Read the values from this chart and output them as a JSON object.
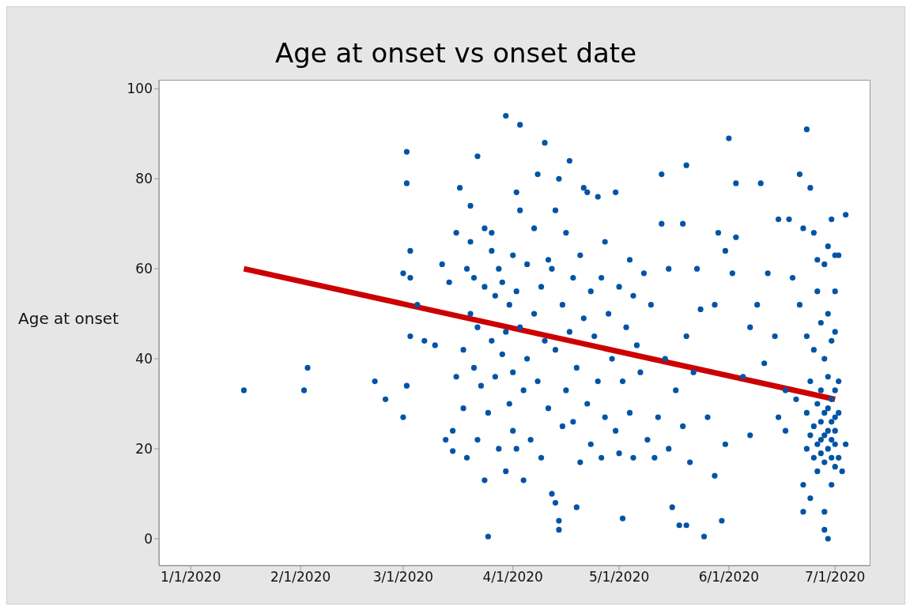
{
  "chart_data": {
    "type": "scatter",
    "title": "Age at onset vs onset date",
    "ylabel": "Age at onset",
    "marker": "circle",
    "xlim": [
      "2019-12-23",
      "2020-07-11"
    ],
    "xticks": [
      {
        "value": "2020-01-01",
        "label": "1/1/2020"
      },
      {
        "value": "2020-02-01",
        "label": "2/1/2020"
      },
      {
        "value": "2020-03-01",
        "label": "3/1/2020"
      },
      {
        "value": "2020-04-01",
        "label": "4/1/2020"
      },
      {
        "value": "2020-05-01",
        "label": "5/1/2020"
      },
      {
        "value": "2020-06-01",
        "label": "6/1/2020"
      },
      {
        "value": "2020-07-01",
        "label": "7/1/2020"
      }
    ],
    "ylim": [
      -6,
      102
    ],
    "yticks": [
      0,
      20,
      40,
      60,
      80,
      100
    ],
    "series": [
      {
        "color": "#0054a6",
        "x": [
          "2020-01-16",
          "2020-02-02",
          "2020-02-03",
          "2020-02-22",
          "2020-02-25",
          "2020-03-01",
          "2020-03-01",
          "2020-03-02",
          "2020-03-02",
          "2020-03-02",
          "2020-03-03",
          "2020-03-03",
          "2020-03-03",
          "2020-03-05",
          "2020-03-07",
          "2020-03-10",
          "2020-03-12",
          "2020-03-13",
          "2020-03-14",
          "2020-03-15",
          "2020-03-15",
          "2020-03-16",
          "2020-03-16",
          "2020-03-17",
          "2020-03-18",
          "2020-03-18",
          "2020-03-19",
          "2020-03-19",
          "2020-03-20",
          "2020-03-20",
          "2020-03-20",
          "2020-03-21",
          "2020-03-21",
          "2020-03-22",
          "2020-03-22",
          "2020-03-22",
          "2020-03-23",
          "2020-03-24",
          "2020-03-24",
          "2020-03-24",
          "2020-03-25",
          "2020-03-25",
          "2020-03-26",
          "2020-03-26",
          "2020-03-26",
          "2020-03-27",
          "2020-03-27",
          "2020-03-28",
          "2020-03-28",
          "2020-03-29",
          "2020-03-29",
          "2020-03-30",
          "2020-03-30",
          "2020-03-30",
          "2020-03-31",
          "2020-03-31",
          "2020-04-01",
          "2020-04-01",
          "2020-04-01",
          "2020-04-02",
          "2020-04-02",
          "2020-04-02",
          "2020-04-03",
          "2020-04-03",
          "2020-04-03",
          "2020-04-04",
          "2020-04-04",
          "2020-04-05",
          "2020-04-05",
          "2020-04-06",
          "2020-04-07",
          "2020-04-07",
          "2020-04-08",
          "2020-04-08",
          "2020-04-09",
          "2020-04-09",
          "2020-04-10",
          "2020-04-10",
          "2020-04-11",
          "2020-04-11",
          "2020-04-12",
          "2020-04-12",
          "2020-04-13",
          "2020-04-13",
          "2020-04-13",
          "2020-04-14",
          "2020-04-14",
          "2020-04-14",
          "2020-04-15",
          "2020-04-15",
          "2020-04-16",
          "2020-04-16",
          "2020-04-17",
          "2020-04-17",
          "2020-04-18",
          "2020-04-18",
          "2020-04-19",
          "2020-04-19",
          "2020-04-20",
          "2020-04-20",
          "2020-04-21",
          "2020-04-21",
          "2020-04-22",
          "2020-04-22",
          "2020-04-23",
          "2020-04-23",
          "2020-04-24",
          "2020-04-25",
          "2020-04-25",
          "2020-04-26",
          "2020-04-26",
          "2020-04-27",
          "2020-04-27",
          "2020-04-28",
          "2020-04-29",
          "2020-04-30",
          "2020-04-30",
          "2020-05-01",
          "2020-05-01",
          "2020-05-02",
          "2020-05-02",
          "2020-05-03",
          "2020-05-04",
          "2020-05-04",
          "2020-05-05",
          "2020-05-05",
          "2020-05-06",
          "2020-05-07",
          "2020-05-08",
          "2020-05-09",
          "2020-05-10",
          "2020-05-11",
          "2020-05-12",
          "2020-05-13",
          "2020-05-13",
          "2020-05-14",
          "2020-05-15",
          "2020-05-15",
          "2020-05-16",
          "2020-05-17",
          "2020-05-18",
          "2020-05-19",
          "2020-05-19",
          "2020-05-20",
          "2020-05-20",
          "2020-05-20",
          "2020-05-21",
          "2020-05-22",
          "2020-05-23",
          "2020-05-24",
          "2020-05-25",
          "2020-05-26",
          "2020-05-28",
          "2020-05-28",
          "2020-05-29",
          "2020-05-30",
          "2020-05-31",
          "2020-05-31",
          "2020-06-01",
          "2020-06-02",
          "2020-06-03",
          "2020-06-03",
          "2020-06-05",
          "2020-06-07",
          "2020-06-07",
          "2020-06-09",
          "2020-06-10",
          "2020-06-11",
          "2020-06-12",
          "2020-06-14",
          "2020-06-15",
          "2020-06-15",
          "2020-06-17",
          "2020-06-17",
          "2020-06-18",
          "2020-06-19",
          "2020-06-20",
          "2020-06-21",
          "2020-06-21",
          "2020-06-22",
          "2020-06-22",
          "2020-06-22",
          "2020-06-23",
          "2020-06-23",
          "2020-06-23",
          "2020-06-23",
          "2020-06-24",
          "2020-06-24",
          "2020-06-24",
          "2020-06-24",
          "2020-06-25",
          "2020-06-25",
          "2020-06-25",
          "2020-06-25",
          "2020-06-26",
          "2020-06-26",
          "2020-06-26",
          "2020-06-26",
          "2020-06-26",
          "2020-06-27",
          "2020-06-27",
          "2020-06-27",
          "2020-06-27",
          "2020-06-27",
          "2020-06-28",
          "2020-06-28",
          "2020-06-28",
          "2020-06-28",
          "2020-06-28",
          "2020-06-28",
          "2020-06-28",
          "2020-06-29",
          "2020-06-29",
          "2020-06-29",
          "2020-06-29",
          "2020-06-29",
          "2020-06-29",
          "2020-06-29",
          "2020-06-30",
          "2020-06-30",
          "2020-06-30",
          "2020-06-30",
          "2020-06-30",
          "2020-06-30",
          "2020-06-30",
          "2020-07-01",
          "2020-07-01",
          "2020-07-01",
          "2020-07-01",
          "2020-07-01",
          "2020-07-01",
          "2020-07-01",
          "2020-07-01",
          "2020-07-02",
          "2020-07-02",
          "2020-07-02",
          "2020-07-02",
          "2020-07-03",
          "2020-07-04",
          "2020-07-04"
        ],
        "values": [
          33,
          33,
          38,
          35,
          31,
          27,
          59,
          86,
          79,
          34,
          45,
          64,
          58,
          52,
          44,
          43,
          61,
          22,
          57,
          19.5,
          24,
          68,
          36,
          78,
          29,
          42,
          60,
          18,
          74,
          66,
          50,
          58,
          38,
          85,
          47,
          22,
          34,
          56,
          69,
          13,
          0.5,
          28,
          68,
          44,
          64,
          54,
          36,
          60,
          20,
          41,
          57,
          94,
          15,
          46,
          30,
          52,
          63,
          37,
          24,
          77,
          55,
          20,
          92,
          73,
          47,
          13,
          33,
          61,
          40,
          22,
          69,
          50,
          81,
          35,
          56,
          18,
          88,
          44,
          62,
          29,
          60,
          10,
          8,
          73,
          42,
          4,
          80,
          2,
          52,
          25,
          68,
          33,
          84,
          46,
          58,
          26,
          7,
          38,
          63,
          17,
          78,
          49,
          77,
          30,
          55,
          21,
          45,
          76,
          35,
          58,
          18,
          66,
          27,
          50,
          40,
          77,
          24,
          56,
          19,
          4.5,
          35,
          47,
          62,
          28,
          54,
          18,
          43,
          37,
          59,
          22,
          52,
          18,
          27,
          81,
          70,
          40,
          60,
          20,
          7,
          33,
          3,
          70,
          25,
          83,
          45,
          3,
          17,
          37,
          60,
          51,
          0.5,
          27,
          52,
          14,
          68,
          4,
          64,
          21,
          89,
          59,
          79,
          67,
          36,
          47,
          23,
          52,
          79,
          39,
          59,
          45,
          71,
          27,
          33,
          24,
          71,
          58,
          31,
          81,
          52,
          69,
          12,
          6,
          91,
          45,
          28,
          20,
          78,
          35,
          23,
          9,
          68,
          42,
          25,
          18,
          62,
          55,
          30,
          21,
          15,
          48,
          33,
          26,
          19,
          22,
          61,
          40,
          28,
          23,
          6,
          2,
          17,
          65,
          50,
          36,
          24,
          0,
          29,
          20,
          71,
          44,
          31,
          26,
          22,
          12,
          18,
          63,
          46,
          33,
          27,
          24,
          21,
          16,
          55,
          63,
          35,
          28,
          18,
          15,
          72,
          21
        ]
      },
      {
        "type": "line",
        "color": "#cc0000",
        "marker": "none",
        "x": [
          "2020-01-16",
          "2020-07-01"
        ],
        "values": [
          60,
          31
        ]
      }
    ]
  }
}
